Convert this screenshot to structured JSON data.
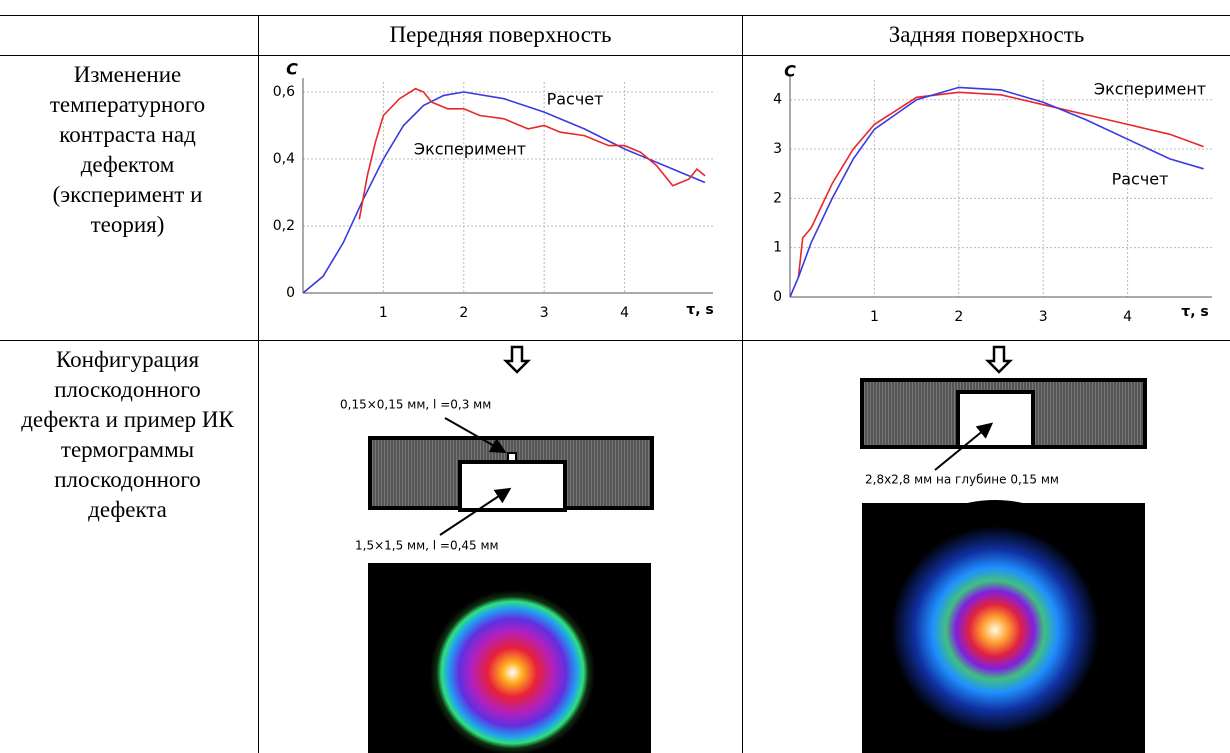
{
  "table": {
    "columns": [
      "Передняя поверхность",
      "Задняя поверхность"
    ],
    "rows": [
      {
        "label": "Изменение температурного контраста над дефектом (эксперимент и теория)"
      },
      {
        "label": "Конфигурация плоскодонного дефекта и пример ИК термограммы плоскодонного дефекта"
      }
    ]
  },
  "chart_data": [
    {
      "type": "line",
      "ylabel": "C",
      "xlabel": "τ, s",
      "xlim": [
        0,
        5.1
      ],
      "ylim": [
        0,
        0.63
      ],
      "xticks": [
        1,
        2,
        3,
        4
      ],
      "yticks": [
        0,
        {
          "value": 0.2,
          "label": "0,2"
        },
        {
          "value": 0.4,
          "label": "0,4"
        },
        {
          "value": 0.6,
          "label": "0,6"
        }
      ],
      "grid": true,
      "series": [
        {
          "name": "Расчет",
          "color": "#3a3ae0",
          "x": [
            0,
            0.25,
            0.5,
            0.75,
            1,
            1.25,
            1.5,
            1.75,
            2,
            2.5,
            3,
            3.5,
            4,
            4.5,
            5
          ],
          "values": [
            0,
            0.05,
            0.15,
            0.28,
            0.4,
            0.5,
            0.56,
            0.59,
            0.6,
            0.58,
            0.54,
            0.49,
            0.43,
            0.38,
            0.33
          ]
        },
        {
          "name": "Эксперимент",
          "color": "#e8282a",
          "x": [
            0.7,
            0.8,
            0.9,
            1,
            1.2,
            1.4,
            1.5,
            1.6,
            1.8,
            2,
            2.2,
            2.5,
            2.8,
            3,
            3.2,
            3.5,
            3.8,
            4,
            4.2,
            4.4,
            4.6,
            4.8,
            4.9,
            5
          ],
          "values": [
            0.22,
            0.35,
            0.45,
            0.53,
            0.58,
            0.61,
            0.6,
            0.57,
            0.55,
            0.55,
            0.53,
            0.52,
            0.49,
            0.5,
            0.48,
            0.47,
            0.44,
            0.44,
            0.42,
            0.38,
            0.32,
            0.34,
            0.37,
            0.35
          ]
        }
      ]
    },
    {
      "type": "line",
      "ylabel": "C",
      "xlabel": "τ, s",
      "xlim": [
        0,
        5
      ],
      "ylim": [
        0,
        4.4
      ],
      "xticks": [
        1,
        2,
        3,
        4
      ],
      "yticks": [
        0,
        1,
        2,
        3,
        4
      ],
      "grid": true,
      "series": [
        {
          "name": "Эксперимент",
          "color": "#e8282a",
          "x": [
            0.1,
            0.15,
            0.25,
            0.5,
            0.75,
            1,
            1.5,
            2,
            2.5,
            3,
            3.5,
            4,
            4.5,
            4.9
          ],
          "values": [
            0.4,
            1.2,
            1.4,
            2.3,
            3.0,
            3.5,
            4.05,
            4.15,
            4.1,
            3.9,
            3.7,
            3.5,
            3.3,
            3.05
          ]
        },
        {
          "name": "Расчет",
          "color": "#3a3ae0",
          "x": [
            0,
            0.1,
            0.25,
            0.5,
            0.75,
            1,
            1.5,
            2,
            2.5,
            3,
            3.5,
            4,
            4.5,
            4.9
          ],
          "values": [
            0,
            0.4,
            1.1,
            2.0,
            2.8,
            3.4,
            4.0,
            4.25,
            4.2,
            3.95,
            3.6,
            3.2,
            2.8,
            2.6
          ]
        }
      ]
    }
  ],
  "diagrams": [
    {
      "annotations": [
        "0,15×0,15  мм, l =0,3 мм",
        "1,5×1,5  мм, l =0,45 мм"
      ]
    },
    {
      "annotations": [
        "2,8x2,8 мм на глубине 0,15 мм"
      ]
    }
  ]
}
